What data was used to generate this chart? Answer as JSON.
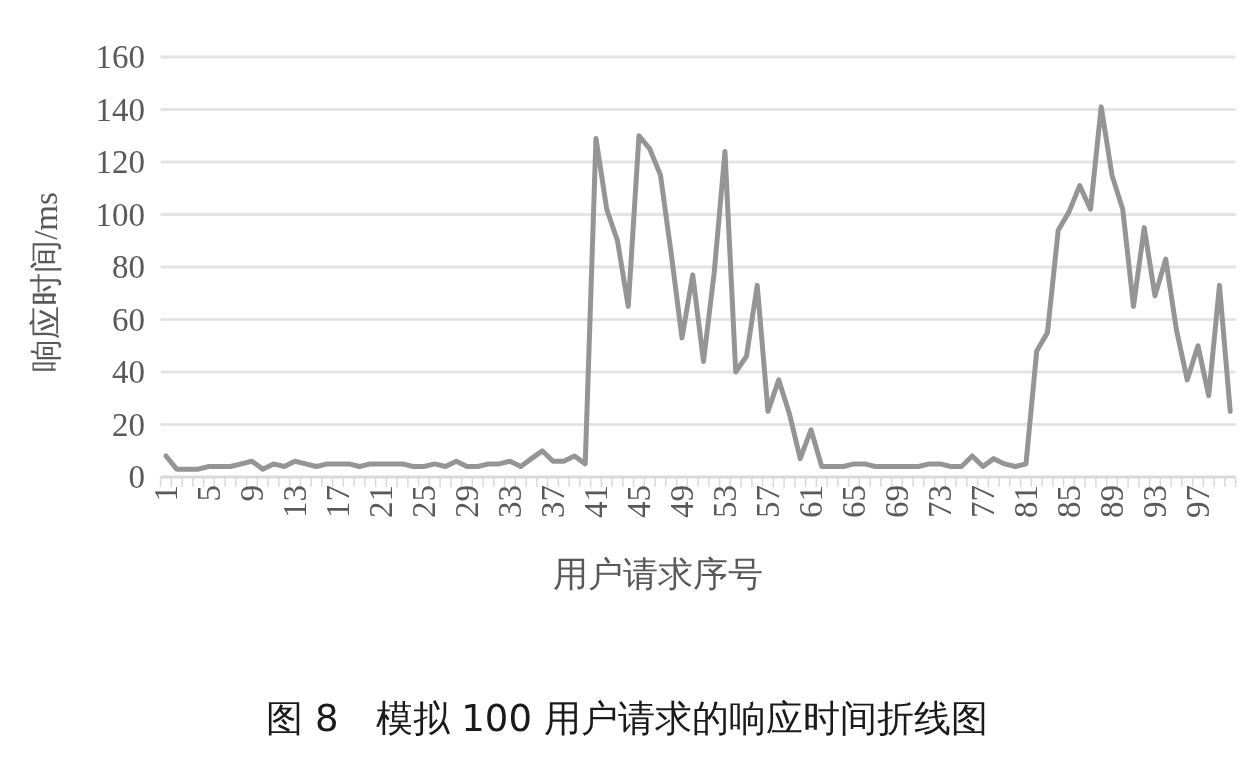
{
  "chart_data": {
    "type": "line",
    "title": "图 8　模拟 100 用户请求的响应时间折线图",
    "xlabel": "用户请求序号",
    "ylabel": "响应时间/ms",
    "categories": [
      "1",
      null,
      null,
      null,
      "5",
      null,
      null,
      null,
      "9",
      null,
      null,
      null,
      "13",
      null,
      null,
      null,
      "17",
      null,
      null,
      null,
      "21",
      null,
      null,
      null,
      "25",
      null,
      null,
      null,
      "29",
      null,
      null,
      null,
      "33",
      null,
      null,
      null,
      "37",
      null,
      null,
      null,
      "41",
      null,
      null,
      null,
      "45",
      null,
      null,
      null,
      "49",
      null,
      null,
      null,
      "53",
      null,
      null,
      null,
      "57",
      null,
      null,
      null,
      "61",
      null,
      null,
      null,
      "65",
      null,
      null,
      null,
      "69",
      null,
      null,
      null,
      "73",
      null,
      null,
      null,
      "77",
      null,
      null,
      null,
      "81",
      null,
      null,
      null,
      "85",
      null,
      null,
      null,
      "89",
      null,
      null,
      null,
      "93",
      null,
      null,
      null,
      "97",
      null,
      null,
      null
    ],
    "series": [
      {
        "color": "#959595",
        "values": [
          8,
          3,
          3,
          3,
          4,
          4,
          4,
          5,
          6,
          3,
          5,
          4,
          6,
          5,
          4,
          5,
          5,
          5,
          4,
          5,
          5,
          5,
          5,
          4,
          4,
          5,
          4,
          6,
          4,
          4,
          5,
          5,
          6,
          4,
          7,
          10,
          6,
          6,
          8,
          5,
          129,
          102,
          90,
          65,
          130,
          125,
          115,
          85,
          53,
          77,
          44,
          78,
          124,
          40,
          46,
          73,
          25,
          37,
          24,
          7,
          18,
          4,
          4,
          4,
          5,
          5,
          4,
          4,
          4,
          4,
          4,
          5,
          5,
          4,
          4,
          8,
          4,
          7,
          5,
          4,
          5,
          48,
          55,
          94,
          101,
          111,
          102,
          141,
          115,
          102,
          65,
          95,
          69,
          83,
          56,
          37,
          50,
          31,
          73,
          25
        ]
      }
    ],
    "ylim": [
      0,
      160
    ],
    "yticks": [
      0,
      20,
      40,
      60,
      80,
      100,
      120,
      140,
      160
    ],
    "grid": "y",
    "marker": "none",
    "line_style": "solid"
  }
}
